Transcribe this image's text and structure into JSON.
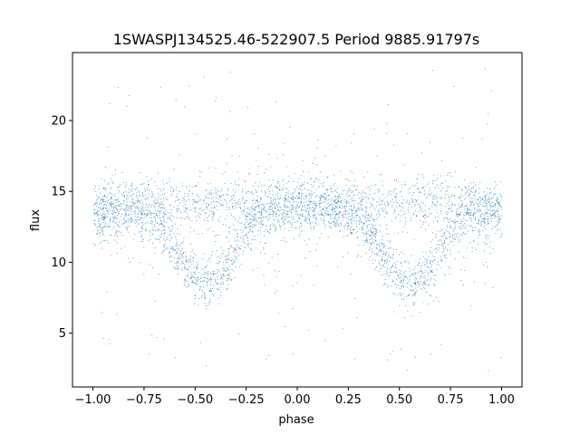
{
  "chart_data": {
    "type": "scatter",
    "title": "1SWASPJ134525.46-522907.5 Period 9885.91797s",
    "xlabel": "phase",
    "ylabel": "flux",
    "xlim": [
      -1.1,
      1.1
    ],
    "ylim": [
      1.2,
      24.8
    ],
    "xticks": [
      -1.0,
      -0.75,
      -0.5,
      -0.25,
      0.0,
      0.25,
      0.5,
      0.75,
      1.0
    ],
    "xtick_labels": [
      "−1.00",
      "−0.75",
      "−0.50",
      "−0.25",
      "0.00",
      "0.25",
      "0.50",
      "0.75",
      "1.00"
    ],
    "yticks": [
      5,
      10,
      15,
      20
    ],
    "ytick_labels": [
      "5",
      "10",
      "15",
      "20"
    ],
    "grid": false,
    "marker_color": "#1f77b4",
    "series": [
      {
        "description_points": [
          {
            "x": -1.0,
            "y": 13.3
          },
          {
            "x": -0.75,
            "y": 13.5
          },
          {
            "x": -0.45,
            "y": 8.6
          },
          {
            "x": -0.15,
            "y": 13.4
          },
          {
            "x": 0.0,
            "y": 13.8
          },
          {
            "x": 0.25,
            "y": 13.5
          },
          {
            "x": 0.55,
            "y": 8.4
          },
          {
            "x": 0.85,
            "y": 13.4
          },
          {
            "x": 1.0,
            "y": 13.2
          }
        ],
        "upper_branch_level": 14.2,
        "primary_minima": [
          -0.45,
          0.55
        ],
        "minimum_flux": 8.4,
        "outlier_range": [
          2.2,
          23.8
        ]
      }
    ]
  }
}
